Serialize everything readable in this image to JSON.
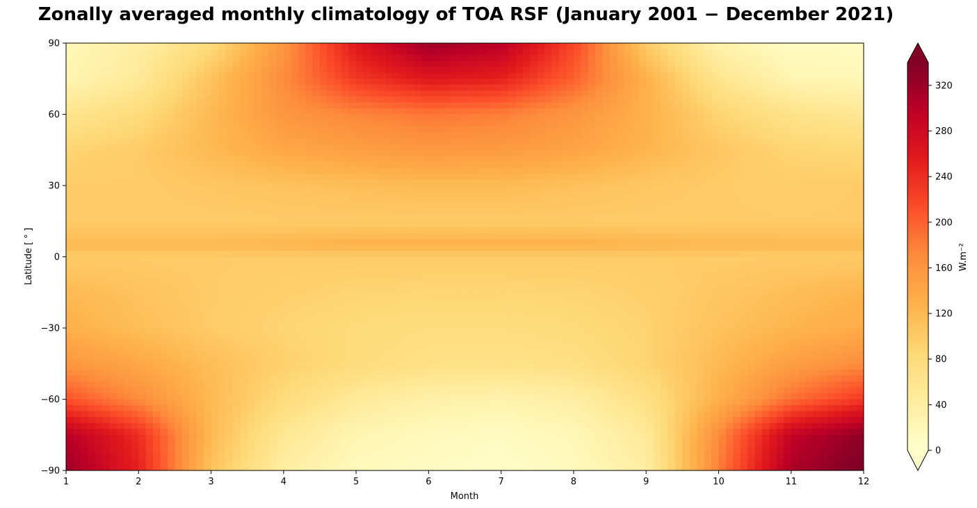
{
  "chart_data": {
    "type": "heatmap",
    "title": "Zonally averaged monthly climatology of TOA RSF (January 2001  −  December 2021)",
    "xlabel": "Month",
    "ylabel": "Latitude [ ° ]",
    "colorbar_label": "W.m⁻²",
    "colormap": "YlOrRd",
    "colormap_stops": [
      "#ffffcc",
      "#ffeda0",
      "#fed976",
      "#feb24c",
      "#fd8d3c",
      "#fc4e2a",
      "#e31a1c",
      "#bd0026",
      "#800026"
    ],
    "xlim": [
      1,
      12
    ],
    "ylim": [
      -90,
      90
    ],
    "clim": [
      0,
      340
    ],
    "colorbar_extend": "both",
    "x_ticks": [
      1,
      2,
      3,
      4,
      5,
      6,
      7,
      8,
      9,
      10,
      11,
      12
    ],
    "x_tick_labels": [
      "1",
      "2",
      "3",
      "4",
      "5",
      "6",
      "7",
      "8",
      "9",
      "10",
      "11",
      "12"
    ],
    "y_ticks": [
      90,
      60,
      30,
      0,
      -30,
      -60,
      -90
    ],
    "y_tick_labels": [
      "90",
      "60",
      "30",
      "0",
      "−30",
      "−60",
      "−90"
    ],
    "colorbar_ticks": [
      0,
      40,
      80,
      120,
      160,
      200,
      240,
      280,
      320
    ],
    "colorbar_tick_labels": [
      "0",
      "40",
      "80",
      "120",
      "160",
      "200",
      "240",
      "280",
      "320"
    ],
    "months": [
      1,
      2,
      3,
      4,
      5,
      6,
      7,
      8,
      9,
      10,
      11,
      12
    ],
    "latitudes": [
      90,
      75,
      60,
      45,
      30,
      15,
      5,
      0,
      -15,
      -30,
      -45,
      -60,
      -75,
      -90
    ],
    "values": [
      [
        20,
        40,
        80,
        160,
        260,
        320,
        300,
        220,
        100,
        30,
        10,
        10
      ],
      [
        25,
        50,
        110,
        170,
        230,
        260,
        250,
        200,
        130,
        60,
        25,
        20
      ],
      [
        60,
        80,
        120,
        160,
        175,
        185,
        180,
        160,
        130,
        90,
        65,
        55
      ],
      [
        90,
        100,
        120,
        140,
        150,
        158,
        155,
        145,
        125,
        105,
        90,
        85
      ],
      [
        100,
        100,
        105,
        110,
        115,
        118,
        118,
        112,
        105,
        100,
        98,
        100
      ],
      [
        100,
        100,
        100,
        100,
        100,
        100,
        100,
        100,
        100,
        100,
        100,
        100
      ],
      [
        120,
        120,
        120,
        125,
        130,
        130,
        130,
        130,
        125,
        122,
        120,
        120
      ],
      [
        100,
        100,
        100,
        100,
        100,
        100,
        100,
        100,
        100,
        100,
        100,
        100
      ],
      [
        120,
        110,
        100,
        95,
        90,
        88,
        88,
        90,
        95,
        105,
        115,
        125
      ],
      [
        130,
        115,
        100,
        90,
        82,
        78,
        78,
        82,
        92,
        110,
        125,
        135
      ],
      [
        160,
        140,
        115,
        95,
        80,
        70,
        68,
        72,
        90,
        120,
        150,
        170
      ],
      [
        210,
        170,
        120,
        80,
        50,
        35,
        30,
        40,
        70,
        130,
        190,
        230
      ],
      [
        300,
        240,
        120,
        55,
        25,
        15,
        10,
        20,
        50,
        170,
        290,
        330
      ],
      [
        320,
        250,
        110,
        40,
        15,
        10,
        5,
        15,
        40,
        180,
        310,
        345
      ]
    ]
  }
}
